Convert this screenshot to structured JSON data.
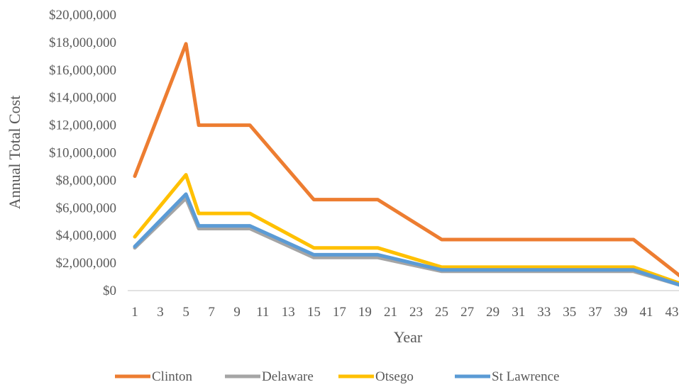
{
  "chart_data": {
    "type": "line",
    "title": "",
    "xlabel": "Year",
    "ylabel": "Annual Total Cost",
    "ylim": [
      0,
      20000000
    ],
    "y_ticks": [
      "$0",
      "$2,000,000",
      "$4,000,000",
      "$6,000,000",
      "$8,000,000",
      "$10,000,000",
      "$12,000,000",
      "$14,000,000",
      "$16,000,000",
      "$18,000,000",
      "$20,000,000"
    ],
    "x_ticks": [
      "1",
      "3",
      "5",
      "7",
      "9",
      "11",
      "13",
      "15",
      "17",
      "19",
      "21",
      "23",
      "25",
      "27",
      "29",
      "31",
      "33",
      "35",
      "37",
      "39",
      "41",
      "43"
    ],
    "xlim": [
      1,
      44
    ],
    "grid": false,
    "legend_position": "bottom",
    "series": [
      {
        "name": "Clinton",
        "color": "#ED7D31",
        "points": [
          [
            1,
            8300000
          ],
          [
            5,
            17900000
          ],
          [
            6,
            12000000
          ],
          [
            10,
            12000000
          ],
          [
            15,
            6600000
          ],
          [
            20,
            6600000
          ],
          [
            25,
            3700000
          ],
          [
            40,
            3700000
          ],
          [
            44,
            800000
          ]
        ]
      },
      {
        "name": "Delaware",
        "color": "#A5A5A5",
        "points": [
          [
            1,
            3100000
          ],
          [
            5,
            6700000
          ],
          [
            6,
            4500000
          ],
          [
            10,
            4500000
          ],
          [
            15,
            2400000
          ],
          [
            20,
            2400000
          ],
          [
            25,
            1400000
          ],
          [
            40,
            1400000
          ],
          [
            44,
            300000
          ]
        ]
      },
      {
        "name": "Otsego",
        "color": "#FFC000",
        "points": [
          [
            1,
            3900000
          ],
          [
            5,
            8400000
          ],
          [
            6,
            5600000
          ],
          [
            10,
            5600000
          ],
          [
            15,
            3100000
          ],
          [
            20,
            3100000
          ],
          [
            25,
            1700000
          ],
          [
            40,
            1700000
          ],
          [
            44,
            400000
          ]
        ]
      },
      {
        "name": "St Lawrence",
        "color": "#5B9BD5",
        "points": [
          [
            1,
            3200000
          ],
          [
            5,
            7000000
          ],
          [
            6,
            4700000
          ],
          [
            10,
            4700000
          ],
          [
            15,
            2600000
          ],
          [
            20,
            2600000
          ],
          [
            25,
            1500000
          ],
          [
            40,
            1500000
          ],
          [
            44,
            300000
          ]
        ]
      }
    ]
  }
}
